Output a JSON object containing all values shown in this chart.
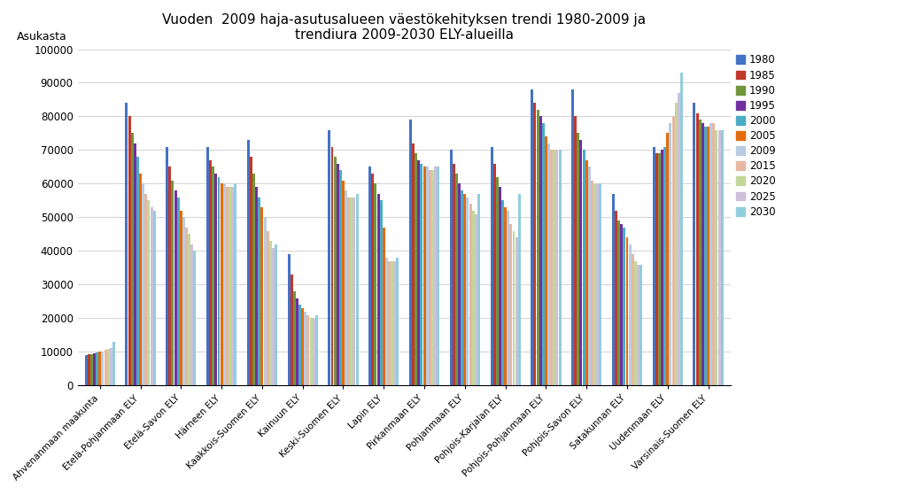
{
  "title": "Vuoden  2009 haja-asutusalueen väestökehityksen trendi 1980-2009 ja\ntrendiura 2009-2030 ELY-alueilla",
  "ylabel": "Asukasta",
  "ylim": [
    0,
    100000
  ],
  "yticks": [
    0,
    10000,
    20000,
    30000,
    40000,
    50000,
    60000,
    70000,
    80000,
    90000,
    100000
  ],
  "categories": [
    "Ahvenanmaan maakunta",
    "Etelä-Pohjanmaan ELY",
    "Etelä-Savon ELY",
    "Härneen ELY",
    "Kaakkois-Suomen ELY",
    "Kainuun ELY",
    "Keski-Suomen ELY",
    "Lapin ELY",
    "Pirkanmaan ELY",
    "Pohjanmaan ELY",
    "Pohjois-Karjalan ELY",
    "Pohjois-Pohjanmaan ELY",
    "Pohjois-Savon ELY",
    "Satakunnan ELY",
    "Uudenmaan ELY",
    "Varsinais-Suomen ELY"
  ],
  "series_labels": [
    "1980",
    "1985",
    "1990",
    "1995",
    "2000",
    "2005",
    "2009",
    "2015",
    "2020",
    "2025",
    "2030"
  ],
  "series_colors": [
    "#4472C4",
    "#C0392B",
    "#70963C",
    "#7030A0",
    "#4BACC6",
    "#E36C09",
    "#B8CCE4",
    "#E6B8A2",
    "#C4D79B",
    "#CCC0DA",
    "#92CDDC"
  ],
  "data": {
    "Ahvenanmaan maakunta": [
      9000,
      9200,
      9400,
      9600,
      9800,
      10000,
      10200,
      10500,
      10800,
      11200,
      13000
    ],
    "Etelä-Pohjanmaan ELY": [
      84000,
      80000,
      75000,
      72000,
      68000,
      63000,
      60000,
      57000,
      55000,
      53000,
      52000
    ],
    "Etelä-Savon ELY": [
      71000,
      65000,
      61000,
      58000,
      56000,
      52000,
      50000,
      47000,
      45000,
      42000,
      40000
    ],
    "Härneen ELY": [
      71000,
      67000,
      65000,
      63000,
      62000,
      60000,
      60000,
      59000,
      59000,
      59000,
      60000
    ],
    "Kaakkois-Suomen ELY": [
      73000,
      68000,
      63000,
      59000,
      56000,
      53000,
      50000,
      46000,
      43000,
      41000,
      42000
    ],
    "Kainuun ELY": [
      39000,
      33000,
      28000,
      26000,
      24000,
      23000,
      22000,
      21000,
      20000,
      20000,
      21000
    ],
    "Keski-Suomen ELY": [
      76000,
      71000,
      68000,
      66000,
      64000,
      61000,
      58000,
      56000,
      56000,
      56000,
      57000
    ],
    "Lapin ELY": [
      65000,
      63000,
      60000,
      57000,
      55000,
      47000,
      38000,
      37000,
      37000,
      37000,
      38000
    ],
    "Pirkanmaan ELY": [
      79000,
      72000,
      69000,
      67000,
      66000,
      65000,
      65000,
      64000,
      64000,
      65000,
      65000
    ],
    "Pohjanmaan ELY": [
      70000,
      66000,
      63000,
      60000,
      58000,
      57000,
      56000,
      54000,
      52000,
      51000,
      57000
    ],
    "Pohjois-Karjalan ELY": [
      71000,
      66000,
      62000,
      59000,
      55000,
      53000,
      52000,
      48000,
      46000,
      44000,
      57000
    ],
    "Pohjois-Pohjanmaan ELY": [
      88000,
      84000,
      82000,
      80000,
      78000,
      74000,
      72000,
      70000,
      70000,
      70000,
      70000
    ],
    "Pohjois-Savon ELY": [
      88000,
      80000,
      75000,
      73000,
      70000,
      67000,
      65000,
      61000,
      60000,
      60000,
      60000
    ],
    "Satakunnan ELY": [
      57000,
      52000,
      49000,
      48000,
      47000,
      44000,
      42000,
      39000,
      37000,
      36000,
      36000
    ],
    "Uudenmaan ELY": [
      71000,
      69000,
      69000,
      70000,
      71000,
      75000,
      78000,
      80000,
      84000,
      87000,
      93000
    ],
    "Varsinais-Suomen ELY": [
      84000,
      81000,
      79000,
      78000,
      77000,
      77000,
      78000,
      78000,
      76000,
      76000,
      76000
    ]
  }
}
